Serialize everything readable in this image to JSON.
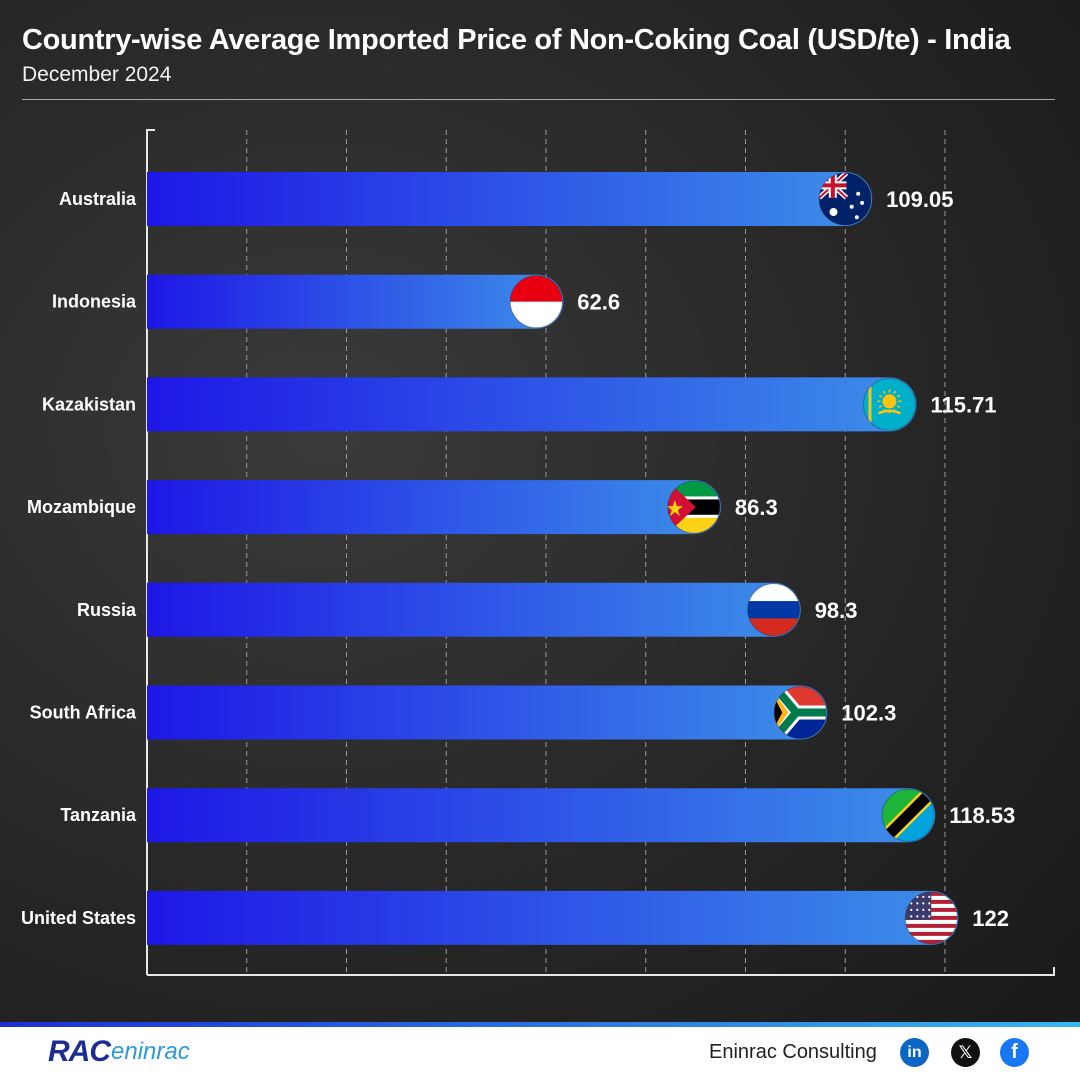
{
  "header": {
    "title": "Country-wise Average Imported Price of Non-Coking Coal (USD/te) - India",
    "subtitle": "December 2024"
  },
  "chart_data": {
    "type": "bar",
    "orientation": "horizontal",
    "title": "Country-wise Average Imported Price of Non-Coking Coal (USD/te) - India",
    "subtitle": "December 2024",
    "categories": [
      "Australia",
      "Indonesia",
      "Kazakistan",
      "Mozambique",
      "Russia",
      "South Africa",
      "Tanzania",
      "United States"
    ],
    "values": [
      109.05,
      62.6,
      115.71,
      86.3,
      98.3,
      102.3,
      118.53,
      122
    ],
    "value_labels": [
      "109.05",
      "62.6",
      "115.71",
      "86.3",
      "98.3",
      "102.3",
      "118.53",
      "122"
    ],
    "flag_icons": [
      "australia-flag-icon",
      "indonesia-flag-icon",
      "kazakhstan-flag-icon",
      "mozambique-flag-icon",
      "russia-flag-icon",
      "south-africa-flag-icon",
      "tanzania-flag-icon",
      "united-states-flag-icon"
    ],
    "xlim": [
      0,
      130
    ],
    "grid": true,
    "colors": {
      "bar_start": "#1e17e6",
      "bar_end": "#3d8fe8"
    }
  },
  "footer": {
    "logo_rac": "RAC",
    "logo_eninrac": "eninrac",
    "company": "Eninrac Consulting",
    "social_icons": [
      "linkedin-icon",
      "x-icon",
      "facebook-icon"
    ],
    "social_glyphs": {
      "linkedin": "in",
      "x": "𝕏",
      "facebook": "f"
    }
  }
}
